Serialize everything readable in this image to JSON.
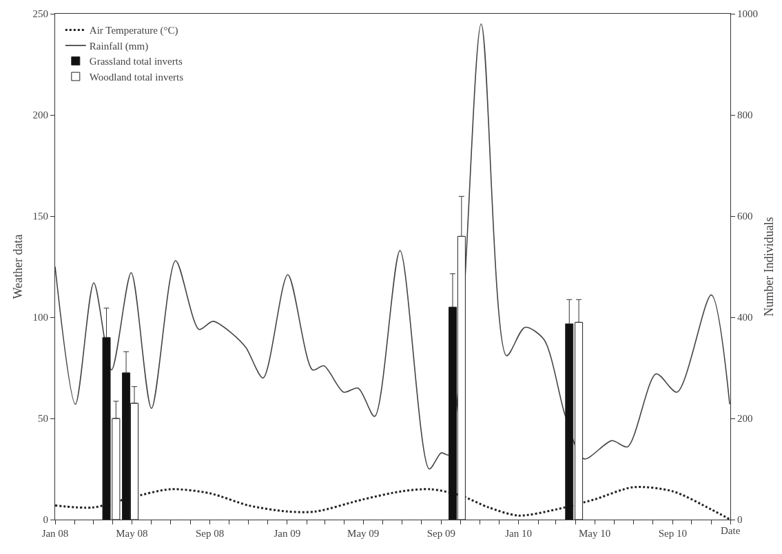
{
  "chart_data": {
    "type": "line",
    "xlabel": "Date",
    "ylabel": "Weather data",
    "y2label": "Number Individuals",
    "xlim": [
      "2008-01-01",
      "2010-12-01"
    ],
    "xticks": [
      {
        "value": "2008-01-01",
        "label": "Jan 08"
      },
      {
        "value": "2008-02-01",
        "label": null
      },
      {
        "value": "2008-03-01",
        "label": null
      },
      {
        "value": "2008-04-01",
        "label": null
      },
      {
        "value": "2008-05-01",
        "label": "May 08"
      },
      {
        "value": "2008-06-01",
        "label": null
      },
      {
        "value": "2008-07-01",
        "label": null
      },
      {
        "value": "2008-08-01",
        "label": null
      },
      {
        "value": "2008-09-01",
        "label": "Sep 08"
      },
      {
        "value": "2008-10-01",
        "label": null
      },
      {
        "value": "2008-11-01",
        "label": null
      },
      {
        "value": "2008-12-01",
        "label": null
      },
      {
        "value": "2009-01-01",
        "label": "Jan 09"
      },
      {
        "value": "2009-02-01",
        "label": null
      },
      {
        "value": "2009-03-01",
        "label": null
      },
      {
        "value": "2009-04-01",
        "label": null
      },
      {
        "value": "2009-05-01",
        "label": "May 09"
      },
      {
        "value": "2009-06-01",
        "label": null
      },
      {
        "value": "2009-07-01",
        "label": null
      },
      {
        "value": "2009-08-01",
        "label": null
      },
      {
        "value": "2009-09-01",
        "label": "Sep 09"
      },
      {
        "value": "2009-10-01",
        "label": null
      },
      {
        "value": "2009-11-01",
        "label": null
      },
      {
        "value": "2009-12-01",
        "label": null
      },
      {
        "value": "2010-01-01",
        "label": "Jan 10"
      },
      {
        "value": "2010-02-01",
        "label": null
      },
      {
        "value": "2010-03-01",
        "label": null
      },
      {
        "value": "2010-04-01",
        "label": null
      },
      {
        "value": "2010-05-01",
        "label": "May 10"
      },
      {
        "value": "2010-06-01",
        "label": null
      },
      {
        "value": "2010-07-01",
        "label": null
      },
      {
        "value": "2010-08-01",
        "label": null
      },
      {
        "value": "2010-09-01",
        "label": "Sep 10"
      },
      {
        "value": "2010-10-01",
        "label": null
      },
      {
        "value": "2010-11-01",
        "label": null
      },
      {
        "value": "2010-12-01",
        "label": null
      }
    ],
    "ylim": [
      0,
      250
    ],
    "yticks": [
      0,
      50,
      100,
      150,
      200,
      250
    ],
    "y2lim": [
      0,
      1000
    ],
    "y2ticks": [
      0,
      200,
      400,
      600,
      800,
      1000
    ],
    "legend": "top left",
    "marker": "none",
    "series": [
      {
        "name": "Air Temperature (°C)",
        "line_style": "dotted",
        "color": "#222222",
        "x": [
          "2008-01-01",
          "2008-03-01",
          "2008-05-01",
          "2008-07-01",
          "2008-09-01",
          "2008-11-01",
          "2009-01-01",
          "2009-02-15",
          "2009-05-01",
          "2009-07-01",
          "2009-08-15",
          "2009-10-01",
          "2009-11-15",
          "2010-01-01",
          "2010-03-01",
          "2010-05-01",
          "2010-07-01",
          "2010-09-01",
          "2010-11-01",
          "2010-12-01"
        ],
        "values": [
          7,
          6,
          11,
          15,
          13,
          7,
          4,
          4,
          10,
          14,
          15,
          12,
          6,
          2,
          5,
          10,
          16,
          14,
          5,
          0
        ]
      },
      {
        "name": "Rainfall (mm)",
        "line_style": "solid",
        "color": "#444444",
        "x": [
          "2008-01-01",
          "2008-02-02",
          "2008-03-02",
          "2008-03-30",
          "2008-04-30",
          "2008-06-01",
          "2008-07-09",
          "2008-08-15",
          "2008-09-06",
          "2008-10-06",
          "2008-10-28",
          "2008-11-24",
          "2009-01-02",
          "2009-02-10",
          "2009-02-28",
          "2009-03-31",
          "2009-04-23",
          "2009-05-19",
          "2009-06-28",
          "2009-08-13",
          "2009-09-01",
          "2009-09-13",
          "2009-11-03",
          "2009-12-13",
          "2010-01-11",
          "2010-02-10",
          "2010-03-16",
          "2010-04-14",
          "2010-05-28",
          "2010-06-22",
          "2010-08-06",
          "2010-09-08",
          "2010-11-01",
          "2010-11-30"
        ],
        "values": [
          125,
          57,
          117,
          74,
          122,
          55,
          128,
          94,
          98,
          92,
          85,
          70,
          121,
          74,
          76,
          63,
          65,
          51,
          133,
          25,
          33,
          32,
          245,
          81,
          95,
          89,
          51,
          30,
          39,
          36,
          72,
          63,
          111,
          57
        ]
      },
      {
        "name": "Grassland total inverts",
        "type": "bar",
        "axis": "y2",
        "color": "#111111",
        "x": [
          "2008-03-22",
          "2008-04-22",
          "2009-09-19",
          "2010-03-22"
        ],
        "values": [
          360,
          290,
          420,
          387
        ],
        "errors": [
          [
            360,
            418
          ],
          [
            290,
            332
          ],
          [
            420,
            486
          ],
          [
            387,
            435
          ]
        ]
      },
      {
        "name": "Woodland total inverts",
        "type": "bar",
        "axis": "y2",
        "color": "#ffffff",
        "x": [
          "2008-04-06",
          "2008-05-05",
          "2009-10-03",
          "2010-04-06"
        ],
        "values": [
          200,
          230,
          560,
          390
        ],
        "errors": [
          [
            200,
            234
          ],
          [
            230,
            263
          ],
          [
            560,
            639
          ],
          [
            390,
            435
          ]
        ]
      }
    ]
  }
}
